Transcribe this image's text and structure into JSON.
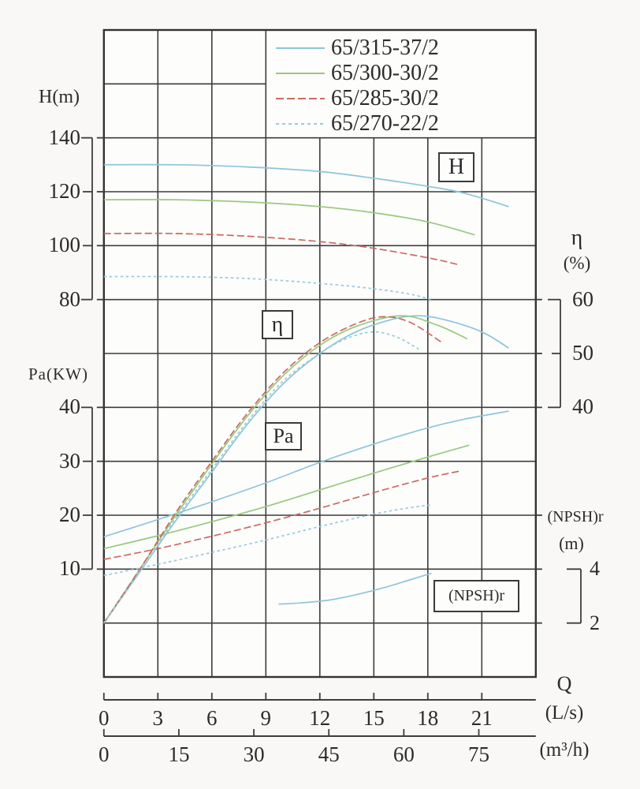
{
  "colors": {
    "grid": "#3d3d3d",
    "border": "#333333",
    "text": "#2b2b2b",
    "series1": "#8cc5da",
    "series2": "#9ac87d",
    "series3": "#cb6a60",
    "series4": "#97cbdc"
  },
  "legend": {
    "items": [
      {
        "label": "65/315-37/2",
        "style": "solid",
        "color_key": "series1"
      },
      {
        "label": "65/300-30/2",
        "style": "solid",
        "color_key": "series2"
      },
      {
        "label": "65/285-30/2",
        "style": "dashed",
        "color_key": "series3"
      },
      {
        "label": "65/270-22/2",
        "style": "dotted",
        "color_key": "series4"
      }
    ]
  },
  "axis_titles": {
    "head": "H(m)",
    "power": "Pa(KW)",
    "efficiency": "η",
    "efficiency_unit": "(%)",
    "npsh": "(NPSH)r",
    "npsh_unit": "(m)",
    "flow": "Q",
    "flow_unit_ls": "(L/s)",
    "flow_unit_m3h": "(m³/h)"
  },
  "inplot_labels": {
    "head": "H",
    "efficiency": "η",
    "power": "Pa",
    "npsh": "(NPSH)r"
  },
  "chart_data": {
    "type": "line",
    "x_axis": {
      "label": "Q",
      "unit_primary": "L/s",
      "ticks_ls": [
        0,
        3,
        6,
        9,
        12,
        15,
        18,
        21
      ],
      "unit_secondary": "m³/h",
      "ticks_m3h": [
        0,
        15,
        30,
        45,
        60,
        75
      ],
      "range_ls": [
        0,
        24
      ]
    },
    "y_axes": {
      "H": {
        "label": "H(m)",
        "ticks": [
          140,
          120,
          100,
          80
        ],
        "units_per_grid": 20
      },
      "Pa": {
        "label": "Pa(KW)",
        "ticks": [
          40,
          30,
          20,
          10
        ],
        "units_per_grid": 10
      },
      "eta": {
        "label": "η(%)",
        "ticks": [
          60,
          50,
          40
        ],
        "units_per_grid": 10
      },
      "NPSHr": {
        "label": "(NPSH)r (m)",
        "ticks": [
          4,
          2
        ],
        "units_per_grid": 2
      }
    },
    "series": [
      {
        "name": "65/315-37/2",
        "color_key": "series1",
        "style": "solid",
        "H": [
          [
            0,
            130
          ],
          [
            4,
            130
          ],
          [
            8,
            129.2
          ],
          [
            12,
            127.5
          ],
          [
            15,
            125
          ],
          [
            18,
            122
          ],
          [
            20,
            119.5
          ],
          [
            22.5,
            114.5
          ]
        ],
        "eta": [
          [
            0,
            0
          ],
          [
            2,
            9.5
          ],
          [
            4,
            19
          ],
          [
            6,
            28
          ],
          [
            8,
            37
          ],
          [
            10,
            44.5
          ],
          [
            12,
            50
          ],
          [
            14,
            54
          ],
          [
            16,
            56.3
          ],
          [
            17.5,
            57
          ],
          [
            19,
            56.2
          ],
          [
            21,
            54
          ],
          [
            22.5,
            51
          ]
        ],
        "Pa": [
          [
            0,
            16
          ],
          [
            3,
            19.2
          ],
          [
            6,
            22.5
          ],
          [
            9,
            26
          ],
          [
            12,
            29.8
          ],
          [
            15,
            33.2
          ],
          [
            18,
            36.2
          ],
          [
            20,
            37.8
          ],
          [
            22.5,
            39.3
          ]
        ]
      },
      {
        "name": "65/300-30/2",
        "color_key": "series2",
        "style": "solid",
        "H": [
          [
            0,
            117
          ],
          [
            4,
            117
          ],
          [
            8,
            116.2
          ],
          [
            12,
            114.5
          ],
          [
            15,
            112.2
          ],
          [
            18,
            108.8
          ],
          [
            20.6,
            104
          ]
        ],
        "eta": [
          [
            0,
            0
          ],
          [
            2,
            10
          ],
          [
            4,
            20
          ],
          [
            6,
            29.5
          ],
          [
            8,
            38.5
          ],
          [
            10,
            46
          ],
          [
            12,
            51.5
          ],
          [
            14,
            55
          ],
          [
            16.5,
            57
          ],
          [
            18.5,
            55.3
          ],
          [
            20.2,
            52.7
          ]
        ],
        "Pa": [
          [
            0,
            13.8
          ],
          [
            3,
            16.2
          ],
          [
            6,
            18.8
          ],
          [
            9,
            21.6
          ],
          [
            12,
            24.7
          ],
          [
            15,
            27.8
          ],
          [
            18,
            30.8
          ],
          [
            20.3,
            33
          ]
        ]
      },
      {
        "name": "65/285-30/2",
        "color_key": "series3",
        "style": "dashed",
        "H": [
          [
            0,
            104.5
          ],
          [
            4,
            104.5
          ],
          [
            8,
            103.5
          ],
          [
            12,
            101.5
          ],
          [
            15,
            99
          ],
          [
            18,
            95.5
          ],
          [
            19.8,
            92.8
          ]
        ],
        "eta": [
          [
            0,
            0
          ],
          [
            2,
            10
          ],
          [
            4,
            20.5
          ],
          [
            6,
            30
          ],
          [
            8,
            39
          ],
          [
            10,
            46.5
          ],
          [
            12,
            52
          ],
          [
            14,
            55.5
          ],
          [
            15.5,
            56.8
          ],
          [
            17,
            55.8
          ],
          [
            18.8,
            52
          ]
        ],
        "Pa": [
          [
            0,
            11.8
          ],
          [
            3,
            13.8
          ],
          [
            6,
            16.1
          ],
          [
            9,
            18.6
          ],
          [
            12,
            21.3
          ],
          [
            15,
            24.2
          ],
          [
            18,
            26.9
          ],
          [
            19.8,
            28.2
          ]
        ]
      },
      {
        "name": "65/270-22/2",
        "color_key": "series4",
        "style": "dotted",
        "H": [
          [
            0,
            88.5
          ],
          [
            4,
            88.5
          ],
          [
            8,
            87.8
          ],
          [
            12,
            86
          ],
          [
            15,
            84
          ],
          [
            17,
            82
          ],
          [
            18.2,
            80
          ]
        ],
        "eta": [
          [
            0,
            0
          ],
          [
            2,
            9.5
          ],
          [
            4,
            19.5
          ],
          [
            6,
            28.5
          ],
          [
            8,
            37.5
          ],
          [
            10,
            45
          ],
          [
            12,
            50
          ],
          [
            13.5,
            52.8
          ],
          [
            15,
            54
          ],
          [
            16.3,
            53
          ],
          [
            17.5,
            50.8
          ]
        ],
        "Pa": [
          [
            0,
            8.8
          ],
          [
            3,
            10.9
          ],
          [
            6,
            13.1
          ],
          [
            9,
            15.4
          ],
          [
            12,
            17.9
          ],
          [
            15,
            20.2
          ],
          [
            17,
            21.4
          ],
          [
            18.2,
            21.9
          ]
        ]
      }
    ],
    "npsh_curve": {
      "name": "(NPSH)r",
      "color_key": "series1",
      "points": [
        [
          9.7,
          2.7
        ],
        [
          11,
          2.75
        ],
        [
          12.5,
          2.85
        ],
        [
          14,
          3.05
        ],
        [
          15.5,
          3.3
        ],
        [
          17,
          3.6
        ],
        [
          18.2,
          3.85
        ]
      ]
    }
  }
}
